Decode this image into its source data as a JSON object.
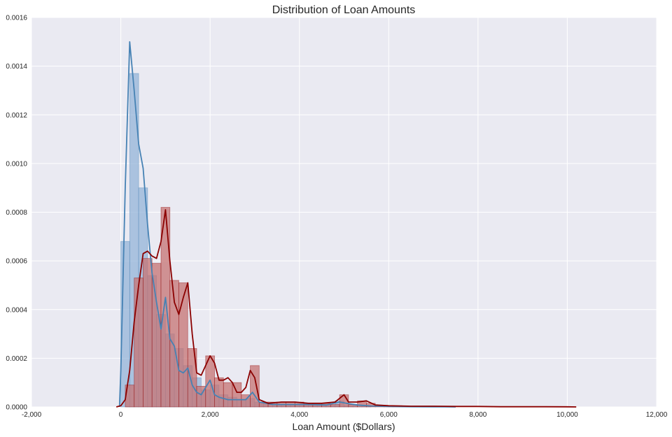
{
  "chart_data": {
    "type": "histogram-kde",
    "title": "Distribution of Loan Amounts",
    "xlabel": "Loan Amount ($Dollars)",
    "ylabel": "",
    "xlim": [
      -2000,
      12000
    ],
    "ylim": [
      0,
      0.0016
    ],
    "xticks": [
      -2000,
      0,
      2000,
      4000,
      6000,
      8000,
      10000,
      12000
    ],
    "xtick_labels": [
      "-2,000",
      "0",
      "2,000",
      "4,000",
      "6,000",
      "8,000",
      "10,000",
      "12,000"
    ],
    "yticks": [
      0,
      0.0002,
      0.0004,
      0.0006,
      0.0008,
      0.001,
      0.0012,
      0.0014,
      0.0016
    ],
    "ytick_labels": [
      "0.0000",
      "0.0002",
      "0.0004",
      "0.0006",
      "0.0008",
      "0.0010",
      "0.0012",
      "0.0014",
      "0.0016"
    ],
    "grid": true,
    "background_color": "#EAEAF2",
    "grid_color": "#FFFFFF",
    "series": [
      {
        "color": "#4682B4",
        "bar_fill": "#8FB0D7",
        "bin_width": 200,
        "bins": [
          [
            0,
            0.00068
          ],
          [
            200,
            0.00137
          ],
          [
            400,
            0.0009
          ],
          [
            600,
            0.00054
          ],
          [
            800,
            0.00038
          ],
          [
            1000,
            0.0003
          ],
          [
            1200,
            0.00024
          ],
          [
            1400,
            0.00017
          ],
          [
            1600,
            0.00012
          ],
          [
            1800,
            7e-05
          ],
          [
            2000,
            9e-05
          ],
          [
            2200,
            5e-05
          ],
          [
            2400,
            4e-05
          ],
          [
            2600,
            3e-05
          ],
          [
            2800,
            3.5e-05
          ],
          [
            3000,
            2e-05
          ],
          [
            3200,
            1.5e-05
          ],
          [
            3400,
            1e-05
          ],
          [
            3600,
            1e-05
          ],
          [
            3800,
            1e-05
          ],
          [
            4000,
            1e-05
          ],
          [
            4200,
            8e-06
          ],
          [
            4400,
            8e-06
          ],
          [
            4600,
            8e-06
          ],
          [
            4800,
            2.5e-05
          ],
          [
            5000,
            6e-06
          ],
          [
            5200,
            8e-06
          ],
          [
            5400,
            4e-06
          ]
        ],
        "kde": [
          [
            -30,
            0
          ],
          [
            0,
            0.00015
          ],
          [
            100,
            0.0009
          ],
          [
            200,
            0.0015
          ],
          [
            300,
            0.0013
          ],
          [
            400,
            0.00108
          ],
          [
            500,
            0.00098
          ],
          [
            600,
            0.00075
          ],
          [
            700,
            0.00055
          ],
          [
            800,
            0.00043
          ],
          [
            900,
            0.00032
          ],
          [
            1000,
            0.00045
          ],
          [
            1100,
            0.00028
          ],
          [
            1200,
            0.00025
          ],
          [
            1300,
            0.00015
          ],
          [
            1400,
            0.00014
          ],
          [
            1500,
            0.00016
          ],
          [
            1600,
            9e-05
          ],
          [
            1700,
            6e-05
          ],
          [
            1800,
            5e-05
          ],
          [
            1900,
            8e-05
          ],
          [
            2000,
            0.00011
          ],
          [
            2100,
            5e-05
          ],
          [
            2200,
            4e-05
          ],
          [
            2400,
            3e-05
          ],
          [
            2600,
            3e-05
          ],
          [
            2800,
            3e-05
          ],
          [
            2950,
            6e-05
          ],
          [
            3100,
            2e-05
          ],
          [
            3400,
            1e-05
          ],
          [
            3800,
            1e-05
          ],
          [
            4200,
            1e-05
          ],
          [
            4600,
            8e-06
          ],
          [
            4900,
            2e-05
          ],
          [
            5050,
            1.5e-05
          ],
          [
            5300,
            8e-06
          ],
          [
            5600,
            4e-06
          ],
          [
            6000,
            2e-06
          ],
          [
            6500,
            1e-06
          ],
          [
            7000,
            5e-07
          ],
          [
            7500,
            0
          ]
        ]
      },
      {
        "color": "#8B0000",
        "bar_fill": "#C67373",
        "bin_width": 200,
        "bins": [
          [
            100,
            9e-05
          ],
          [
            300,
            0.00053
          ],
          [
            500,
            0.00061
          ],
          [
            700,
            0.00059
          ],
          [
            900,
            0.00082
          ],
          [
            1100,
            0.00052
          ],
          [
            1300,
            0.00051
          ],
          [
            1500,
            0.00024
          ],
          [
            1700,
            8.5e-05
          ],
          [
            1900,
            0.00021
          ],
          [
            2100,
            0.00012
          ],
          [
            2300,
            0.0001
          ],
          [
            2500,
            0.0001
          ],
          [
            2700,
            5e-05
          ],
          [
            2900,
            0.00017
          ],
          [
            3100,
            2e-05
          ],
          [
            3300,
            2e-05
          ],
          [
            3500,
            2e-05
          ],
          [
            3700,
            2e-05
          ],
          [
            3900,
            2e-05
          ],
          [
            4100,
            1.5e-05
          ],
          [
            4300,
            1.5e-05
          ],
          [
            4500,
            1.5e-05
          ],
          [
            4700,
            1e-05
          ],
          [
            4900,
            5e-05
          ],
          [
            5100,
            1e-05
          ],
          [
            5300,
            2.5e-05
          ],
          [
            5500,
            1.5e-05
          ],
          [
            5700,
            5e-06
          ],
          [
            5900,
            5e-06
          ],
          [
            6100,
            5e-06
          ]
        ],
        "kde": [
          [
            -100,
            0
          ],
          [
            0,
            5e-06
          ],
          [
            100,
            3e-05
          ],
          [
            200,
            0.00015
          ],
          [
            300,
            0.00035
          ],
          [
            400,
            0.0005
          ],
          [
            500,
            0.00063
          ],
          [
            600,
            0.00064
          ],
          [
            700,
            0.00062
          ],
          [
            800,
            0.00061
          ],
          [
            900,
            0.00068
          ],
          [
            1000,
            0.00081
          ],
          [
            1100,
            0.0006
          ],
          [
            1200,
            0.00043
          ],
          [
            1300,
            0.00038
          ],
          [
            1400,
            0.00045
          ],
          [
            1500,
            0.00051
          ],
          [
            1600,
            0.0003
          ],
          [
            1700,
            0.00014
          ],
          [
            1800,
            0.00013
          ],
          [
            1900,
            0.00017
          ],
          [
            2000,
            0.00021
          ],
          [
            2100,
            0.00018
          ],
          [
            2200,
            0.00011
          ],
          [
            2300,
            0.00011
          ],
          [
            2400,
            0.00012
          ],
          [
            2500,
            0.0001
          ],
          [
            2600,
            6e-05
          ],
          [
            2700,
            6e-05
          ],
          [
            2800,
            8e-05
          ],
          [
            2900,
            0.00015
          ],
          [
            3000,
            0.00012
          ],
          [
            3100,
            3e-05
          ],
          [
            3300,
            1.5e-05
          ],
          [
            3600,
            2e-05
          ],
          [
            3900,
            2e-05
          ],
          [
            4200,
            1.5e-05
          ],
          [
            4500,
            1.5e-05
          ],
          [
            4800,
            2e-05
          ],
          [
            5000,
            5e-05
          ],
          [
            5100,
            2e-05
          ],
          [
            5300,
            2e-05
          ],
          [
            5500,
            2.5e-05
          ],
          [
            5700,
            8e-06
          ],
          [
            6000,
            5e-06
          ],
          [
            6500,
            3e-06
          ],
          [
            7000,
            3e-06
          ],
          [
            7500,
            2e-06
          ],
          [
            8000,
            2e-06
          ],
          [
            8500,
            1e-06
          ],
          [
            9000,
            1e-06
          ],
          [
            9500,
            1e-06
          ],
          [
            10000,
            5e-07
          ],
          [
            10200,
            0
          ]
        ]
      }
    ]
  }
}
